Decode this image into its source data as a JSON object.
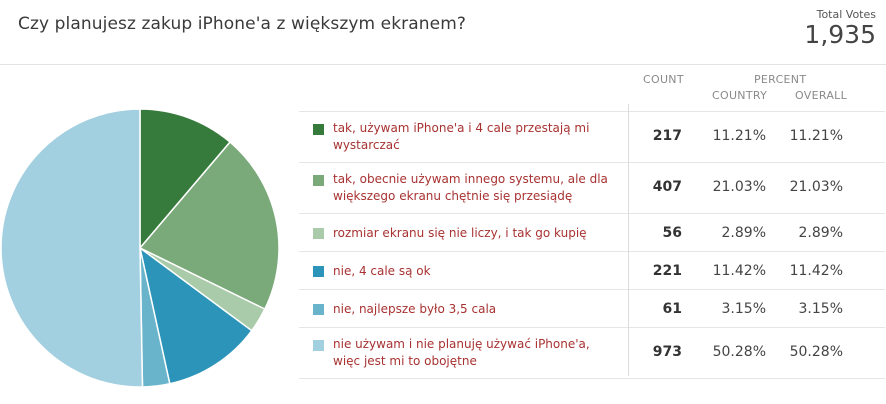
{
  "poll": {
    "question": "Czy planujesz zakup iPhone'a z większym ekranem?",
    "total_votes_label": "Total Votes",
    "total_votes": "1,935"
  },
  "table": {
    "headers": {
      "count": "COUNT",
      "percent": "PERCENT",
      "country": "COUNTRY",
      "overall": "OVERALL"
    }
  },
  "chart_data": {
    "type": "pie",
    "title": "Czy planujesz zakup iPhone'a z większym ekranem?",
    "categories": [
      "tak, używam iPhone'a i 4 cale przestają mi wystarczać",
      "tak, obecnie używam innego systemu, ale dla większego ekranu chętnie się przesiądę",
      "rozmiar ekranu się nie liczy, i tak go kupię",
      "nie, 4 cale są ok",
      "nie, najlepsze było 3,5 cala",
      "nie używam i nie planuję używać iPhone'a, więc jest mi to obojętne"
    ],
    "values": [
      217,
      407,
      56,
      221,
      61,
      973
    ],
    "percent_country": [
      "11.21%",
      "21.03%",
      "2.89%",
      "11.42%",
      "3.15%",
      "50.28%"
    ],
    "percent_overall": [
      "11.21%",
      "21.03%",
      "2.89%",
      "11.42%",
      "3.15%",
      "50.28%"
    ],
    "colors": [
      "#367b3c",
      "#7aa97a",
      "#a9cba9",
      "#2b94b8",
      "#69b3cb",
      "#a3d0e0"
    ],
    "legend": "right"
  }
}
